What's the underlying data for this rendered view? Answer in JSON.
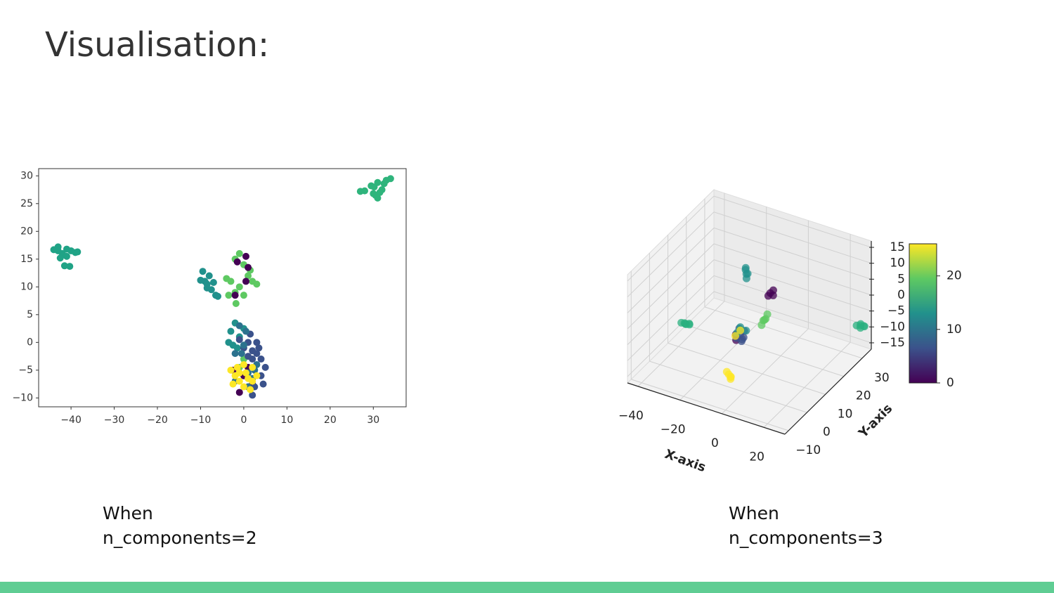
{
  "slide": {
    "title": "Visualisation:",
    "captions": [
      [
        "When",
        "n_components=2"
      ],
      [
        "When",
        "n_components=3"
      ]
    ]
  },
  "chart_data": [
    {
      "type": "scatter",
      "xlim": [
        -47.5,
        37.6
      ],
      "ylim": [
        -11.6,
        31.3
      ],
      "xticks": [
        {
          "value": -40,
          "label": "−40"
        },
        {
          "value": -30,
          "label": "−30"
        },
        {
          "value": -20,
          "label": "−20"
        },
        {
          "value": -10,
          "label": "−10"
        },
        0,
        10,
        20,
        30
      ],
      "yticks": [
        {
          "value": -10,
          "label": "−10"
        },
        {
          "value": -5,
          "label": "−5"
        },
        0,
        5,
        10,
        15,
        20,
        25,
        30
      ],
      "series": [
        {
          "color": "#2fb47c",
          "x": [
            28,
            29.5,
            30.5,
            31,
            32,
            33,
            31.5,
            30,
            32.5,
            34,
            31,
            30.2,
            27
          ],
          "y": [
            27.3,
            28.2,
            26.5,
            28.8,
            27.5,
            29.2,
            27,
            26.8,
            28.6,
            29.5,
            26,
            28,
            27.2
          ]
        },
        {
          "color": "#20a386",
          "x": [
            -44,
            -43,
            -42,
            -41,
            -40,
            -39,
            -42.5,
            -41.5,
            -40.3,
            -38.5,
            -43,
            -41
          ],
          "y": [
            16.7,
            17.2,
            16,
            15.5,
            16.5,
            16.2,
            15.2,
            13.8,
            13.7,
            16.3,
            16.5,
            16.8
          ]
        },
        {
          "color": "#21918c",
          "x": [
            -9.5,
            -9,
            -8.5,
            -8,
            -7.5,
            -7,
            -6.5,
            -8.5,
            -10,
            -6,
            -3,
            -2,
            -1,
            -3.5,
            -1.5,
            0,
            -2.5
          ],
          "y": [
            12.8,
            11,
            10.5,
            12,
            9.5,
            10.8,
            8.5,
            9.8,
            11.2,
            8.3,
            2,
            3.5,
            1,
            0,
            -1,
            2.5,
            -0.5
          ]
        },
        {
          "color": "#5ec962",
          "x": [
            -2,
            -1,
            0,
            1,
            -3,
            -2,
            -1,
            0,
            2,
            -3.5,
            -1.8,
            1.5,
            3,
            -4,
            -1,
            0
          ],
          "y": [
            15,
            16,
            14,
            12,
            11,
            9,
            10,
            8.5,
            11,
            8.5,
            7,
            13,
            10.5,
            11.5,
            -4.5,
            -3
          ]
        },
        {
          "color": "#440154",
          "x": [
            0.5,
            1,
            -1.5,
            0.5,
            -2,
            -1,
            0,
            2,
            -2.5,
            1
          ],
          "y": [
            15.5,
            13.5,
            14.5,
            11,
            8.5,
            -9,
            -6,
            -7.5,
            -5,
            -4.5
          ]
        },
        {
          "color": "#3b528b",
          "x": [
            0,
            1,
            2,
            3,
            4,
            5,
            2,
            1,
            3.5,
            4,
            2.5,
            4.5,
            -1,
            1.5,
            3,
            2
          ],
          "y": [
            -1,
            0,
            -1.5,
            -2,
            -3,
            -4.5,
            -3,
            -2.5,
            -1,
            -6,
            -8,
            -7.5,
            0.5,
            1.5,
            0,
            -9.5
          ]
        },
        {
          "color": "#2c728e",
          "x": [
            -2,
            0,
            -1,
            1,
            2.5,
            -2,
            1,
            3,
            -0.5,
            0.5,
            2
          ],
          "y": [
            -2,
            -0.5,
            3,
            -5.5,
            -5,
            -7,
            -8,
            -4,
            -2,
            2,
            -6.5
          ]
        },
        {
          "color": "#fde725",
          "x": [
            -3,
            -2,
            -1,
            0,
            1,
            2,
            -1.5,
            0.5,
            1.5,
            -2.5,
            0,
            3,
            2,
            -1
          ],
          "y": [
            -5,
            -6,
            -7,
            -8,
            -6.5,
            -7,
            -4.5,
            -5.5,
            -8.5,
            -7.5,
            -4,
            -6,
            -4.5,
            -5.5
          ]
        }
      ]
    },
    {
      "type": "scatter3d",
      "xlabel": "X-axis",
      "ylabel": "Y-axis",
      "xlim": [
        -45,
        30
      ],
      "ylim": [
        -12,
        35
      ],
      "zlim": [
        -17,
        17
      ],
      "xticks": [
        {
          "value": -40,
          "label": "−40"
        },
        {
          "value": -20,
          "label": "−20"
        },
        0,
        20
      ],
      "yticks": [
        {
          "value": -10,
          "label": "−10"
        },
        0,
        10,
        20,
        30
      ],
      "zticks": [
        {
          "value": -15,
          "label": "−15"
        },
        {
          "value": -10,
          "label": "−10"
        },
        {
          "value": -5,
          "label": "−5"
        },
        0,
        5,
        10,
        15
      ],
      "colorbar": {
        "clim": [
          0,
          26
        ],
        "ticks": [
          0,
          10,
          20
        ],
        "colors": [
          "#440154",
          "#3b528b",
          "#21918c",
          "#5ec962",
          "#fde725"
        ]
      },
      "series": [
        {
          "color": "#2ab07f",
          "x": [
            -42,
            -43,
            -41,
            -40,
            -42.5,
            -41.5
          ],
          "y": [
            16,
            15,
            17,
            16,
            17,
            15
          ],
          "z": [
            -13.7,
            -13,
            -14,
            -13.5,
            -14.5,
            -12.8
          ]
        },
        {
          "color": "#2ab07f",
          "x": [
            31,
            30,
            32,
            31.5,
            30.5,
            32.5
          ],
          "y": [
            28,
            27,
            29,
            27.5,
            28.5,
            28
          ],
          "z": [
            -5.4,
            -5,
            -6,
            -4.5,
            -6.5,
            -5.2
          ]
        },
        {
          "color": "#21918c",
          "x": [
            -8,
            -8.5,
            -7.5,
            -8,
            -7
          ],
          "y": [
            10,
            11,
            9.5,
            10.5,
            10
          ],
          "z": [
            14,
            12,
            15,
            11,
            13
          ]
        },
        {
          "color": "#440154",
          "x": [
            2,
            3,
            1.5,
            2.5,
            -3,
            -2
          ],
          "y": [
            12,
            12.5,
            11.5,
            13,
            -1,
            -2
          ],
          "z": [
            7.7,
            8.5,
            7,
            6.5,
            1,
            0
          ]
        },
        {
          "color": "#5ec962",
          "x": [
            1,
            2,
            0,
            1.5,
            0.5
          ],
          "y": [
            10,
            9.5,
            10.5,
            11,
            9
          ],
          "z": [
            0.2,
            1,
            -0.5,
            1.5,
            -1
          ]
        },
        {
          "color": "#3b528b",
          "x": [
            0,
            1,
            -1,
            2,
            0.5,
            -0.5,
            1.5
          ],
          "y": [
            -2,
            -1,
            -3,
            -2.5,
            -1.5,
            -2,
            -3
          ],
          "z": [
            2.3,
            3,
            1.5,
            2,
            0.5,
            4,
            1
          ]
        },
        {
          "color": "#21918c",
          "x": [
            -1,
            0,
            1,
            -2
          ],
          "y": [
            -1,
            -2,
            0,
            -1.5
          ],
          "z": [
            3,
            4.5,
            2.5,
            2
          ]
        },
        {
          "color": "#fde725",
          "x": [
            -2,
            -1.5,
            -2.5,
            -1,
            -2,
            0,
            -1.5
          ],
          "y": [
            -6,
            -5.5,
            -6.5,
            -6,
            -5,
            -2,
            -3
          ],
          "z": [
            -8.5,
            -9.5,
            -7.5,
            -9,
            -10.5,
            3.5,
            2
          ]
        }
      ]
    }
  ]
}
